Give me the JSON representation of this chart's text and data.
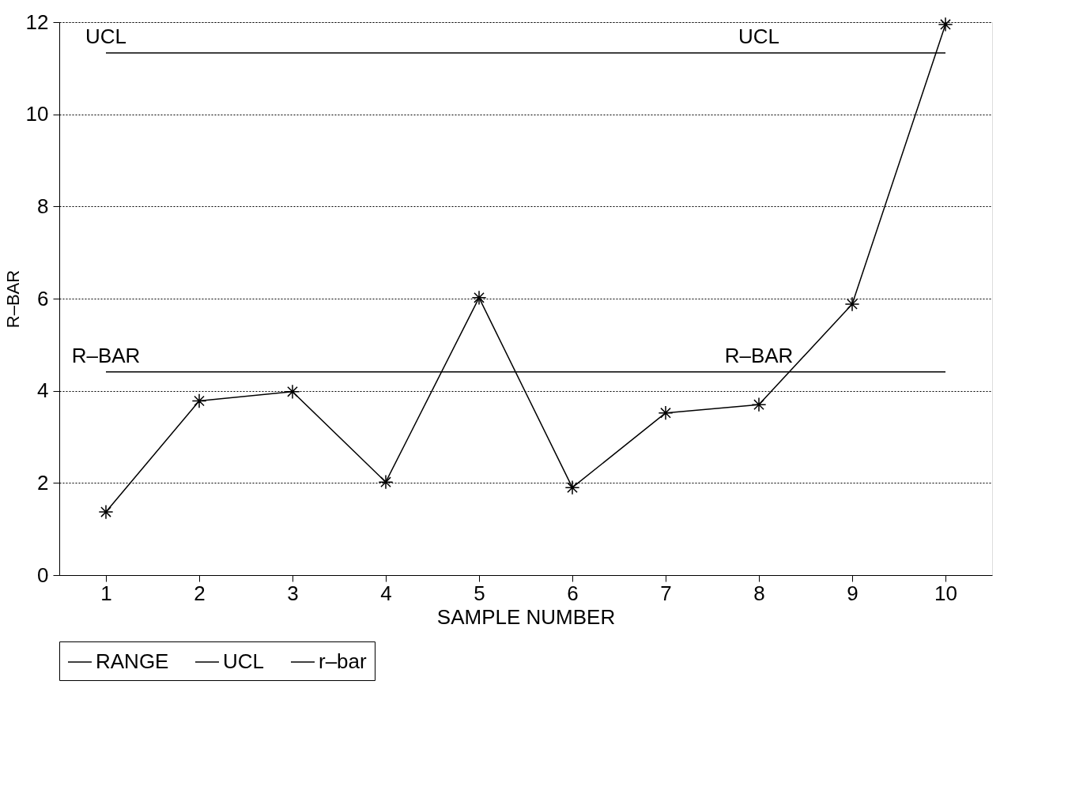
{
  "chart_data": {
    "type": "line",
    "xlabel": "SAMPLE NUMBER",
    "ylabel": "R–BAR",
    "x": [
      1,
      2,
      3,
      4,
      5,
      6,
      7,
      8,
      9,
      10
    ],
    "series": [
      {
        "name": "RANGE",
        "color": "#000000",
        "marker": "cross",
        "values": [
          1.37,
          3.78,
          3.98,
          2.02,
          6.02,
          1.9,
          3.52,
          3.7,
          5.88,
          11.95
        ]
      },
      {
        "name": "UCL",
        "color": "#000000",
        "marker": "none",
        "values": [
          11.33,
          11.33,
          11.33,
          11.33,
          11.33,
          11.33,
          11.33,
          11.33,
          11.33,
          11.33
        ]
      },
      {
        "name": "r–bar",
        "color": "#000000",
        "marker": "none",
        "values": [
          4.41,
          4.41,
          4.41,
          4.41,
          4.41,
          4.41,
          4.41,
          4.41,
          4.41,
          4.41
        ]
      }
    ],
    "xlim": [
      0.5,
      10.5
    ],
    "xticks": [
      1,
      2,
      3,
      4,
      5,
      6,
      7,
      8,
      9,
      10
    ],
    "ylim": [
      0,
      12
    ],
    "yticks": [
      0,
      2,
      4,
      6,
      8,
      10,
      12
    ],
    "grid": "y",
    "legend": "bottom",
    "line_style": "solid",
    "annotations": [
      "UCL",
      "UCL",
      "R–BAR",
      "R–BAR"
    ]
  }
}
